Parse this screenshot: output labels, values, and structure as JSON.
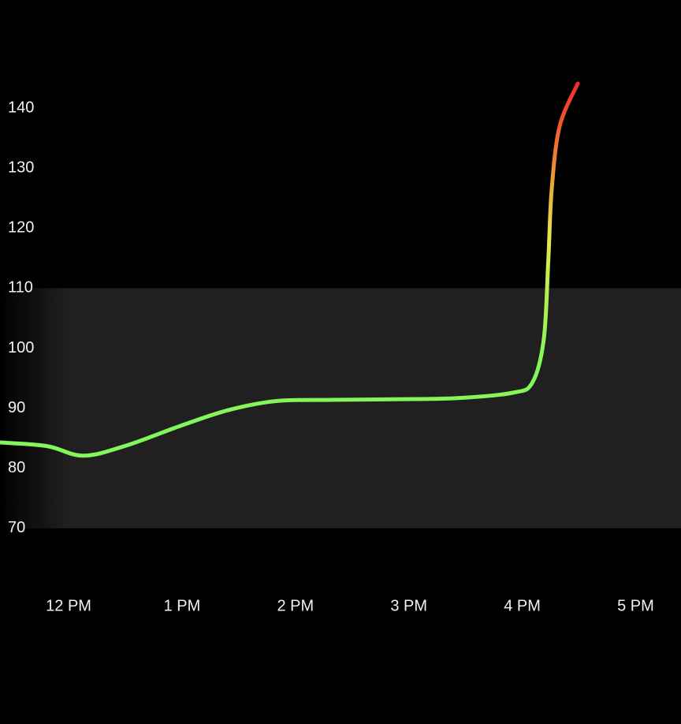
{
  "chart_data": {
    "type": "line",
    "x": [
      11.4,
      11.81,
      12.13,
      12.51,
      12.99,
      13.41,
      13.83,
      14.32,
      14.87,
      15.43,
      15.92,
      16.09,
      16.19,
      16.23,
      16.26,
      16.33,
      16.49
    ],
    "series": [
      {
        "values": [
          84.3,
          83.7,
          82.1,
          83.8,
          87.1,
          89.7,
          91.2,
          91.4,
          91.5,
          91.7,
          92.6,
          94.3,
          101.5,
          114.7,
          126.5,
          137.0,
          144.1
        ],
        "color": "#84f55a"
      }
    ],
    "xlim": [
      11.395,
      17.4
    ],
    "xticks": [
      {
        "value": 12,
        "label": "12 PM"
      },
      {
        "value": 13,
        "label": "1 PM"
      },
      {
        "value": 14,
        "label": "2 PM"
      },
      {
        "value": 15,
        "label": "3 PM"
      },
      {
        "value": 16,
        "label": "4 PM"
      },
      {
        "value": 17,
        "label": "5 PM"
      }
    ],
    "ylim": [
      60,
      150
    ],
    "yticks": [
      70,
      80,
      90,
      100,
      110,
      120,
      130,
      140
    ],
    "target_range": [
      70,
      110
    ],
    "grid": false
  }
}
